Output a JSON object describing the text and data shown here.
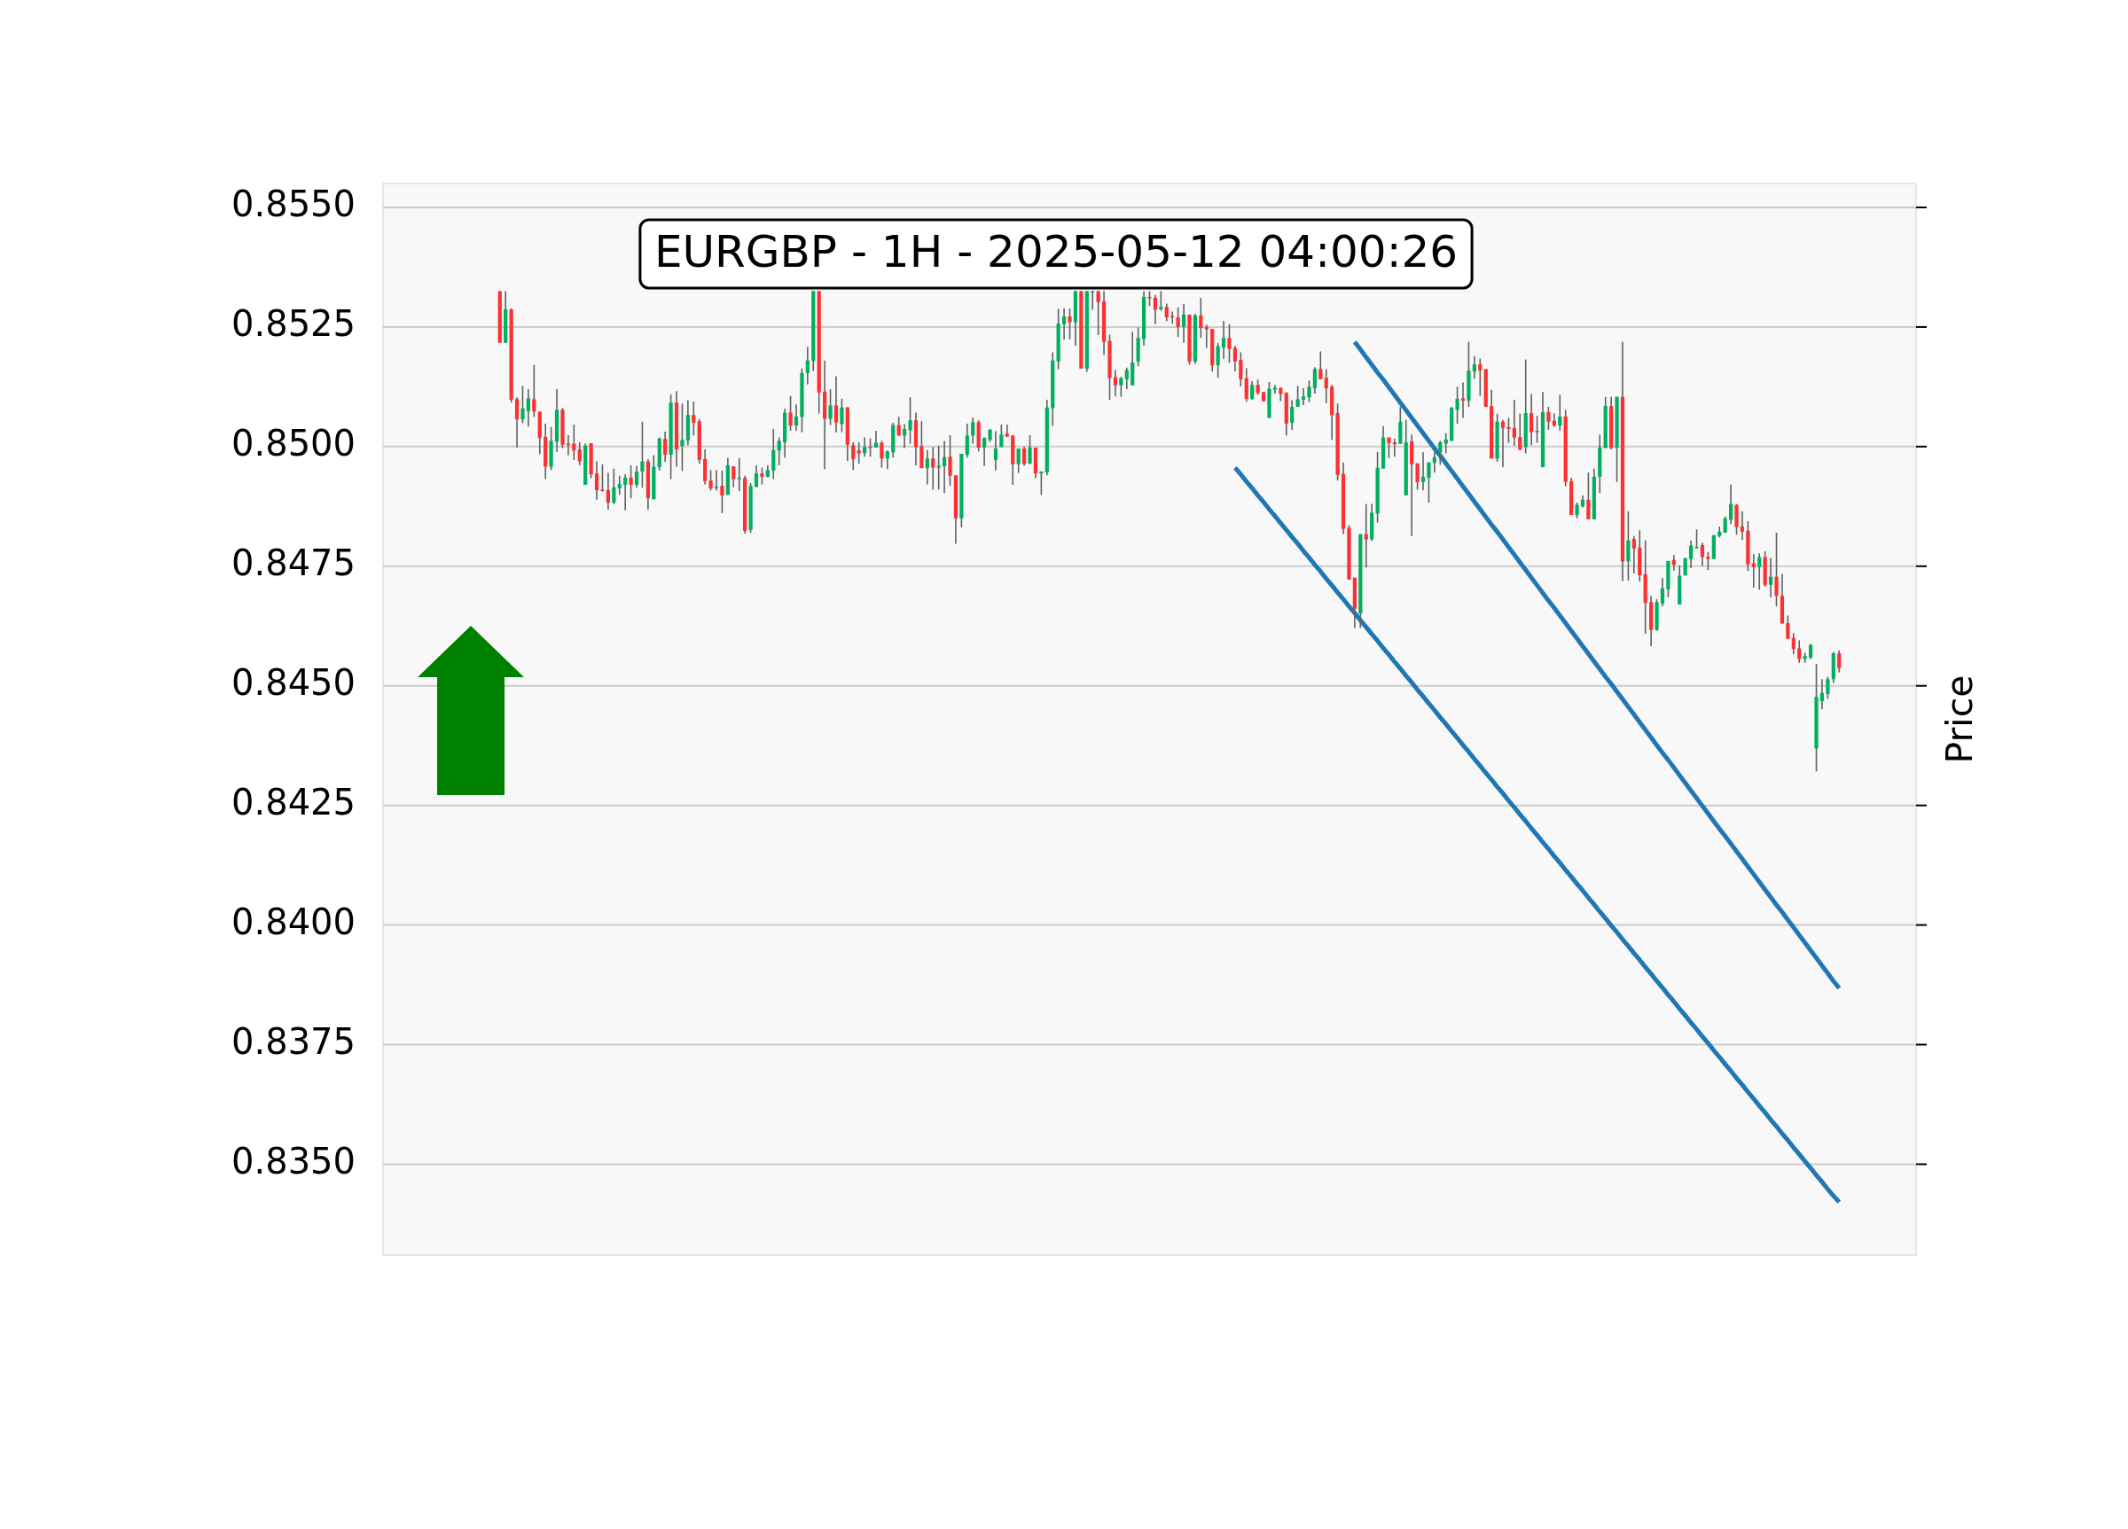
{
  "chart_data": {
    "type": "candlestick",
    "title": "EURGBP - 1H - 2025-05-12 04:00:26",
    "ylabel": "Price",
    "categories": [
      null,
      null,
      null,
      null,
      null,
      null,
      null,
      null,
      null,
      null,
      null,
      null,
      null,
      null,
      null,
      null,
      null,
      null,
      null,
      null,
      null,
      null,
      null,
      null,
      null,
      null,
      null,
      null,
      null,
      null,
      null,
      null,
      null,
      null,
      null,
      null,
      null,
      null,
      null,
      null,
      null,
      null,
      null,
      null,
      null,
      null,
      null,
      null,
      null,
      null,
      null,
      null,
      null,
      null,
      null,
      null,
      null,
      null,
      null,
      null,
      null,
      null,
      null,
      null,
      null,
      null,
      null,
      null,
      null,
      null,
      null,
      null,
      null,
      null,
      null,
      null,
      null,
      null,
      null,
      null,
      null,
      null,
      null,
      null,
      null,
      null,
      null,
      null,
      null,
      null,
      null,
      null,
      null,
      null,
      null,
      null,
      null,
      null,
      null,
      null,
      null,
      null,
      null,
      null,
      null,
      null,
      null,
      null,
      null,
      null,
      null,
      null,
      null,
      null,
      null,
      null,
      null,
      null,
      null,
      null,
      null,
      null,
      null,
      null,
      null,
      null,
      null,
      null,
      null,
      null,
      null,
      null,
      null,
      null,
      null,
      null,
      null,
      null,
      null,
      null,
      null,
      null,
      null,
      null,
      null,
      null,
      null,
      null,
      null,
      null,
      null,
      null,
      null,
      null,
      null,
      null,
      null,
      null,
      null,
      null,
      null,
      null,
      null,
      null,
      null,
      null,
      null,
      null,
      null,
      null,
      null,
      null,
      null,
      null,
      null,
      null,
      null,
      null,
      null,
      null,
      null,
      null,
      null,
      null,
      null,
      null,
      null,
      null,
      null,
      null,
      null,
      null,
      null,
      null,
      null,
      null,
      null,
      null,
      null,
      null,
      null,
      null,
      null,
      null,
      null,
      null,
      null,
      null,
      null,
      null,
      null,
      null,
      null,
      null,
      null,
      null,
      null,
      null,
      null,
      null,
      null,
      null,
      null,
      null,
      null,
      null,
      null,
      null,
      null,
      null,
      null,
      null,
      null,
      null,
      null,
      null,
      null,
      null,
      null,
      null,
      null,
      null,
      null,
      null,
      null,
      null,
      null,
      null,
      null,
      null,
      null,
      null,
      null,
      null,
      null,
      null,
      null,
      null,
      null,
      null,
      null,
      null,
      null,
      null,
      null,
      null,
      null,
      null,
      null
    ],
    "ohlc": [
      null,
      null,
      null,
      null,
      null,
      null,
      null,
      null,
      null,
      null,
      null,
      null,
      null,
      null,
      null,
      null,
      null,
      null,
      null,
      null,
      [
        0.85325,
        0.85325,
        0.85217,
        0.85217
      ],
      [
        0.85217,
        0.85325,
        0.85217,
        0.85287
      ],
      [
        0.85287,
        0.85289,
        0.85092,
        0.85098
      ],
      [
        0.85099,
        0.85103,
        0.84998,
        0.85057
      ],
      [
        0.85057,
        0.85127,
        0.85049,
        0.8508
      ],
      [
        0.85074,
        0.8512,
        0.85042,
        0.85101
      ],
      [
        0.85099,
        0.85171,
        0.85062,
        0.85073
      ],
      [
        0.85073,
        0.85073,
        0.84984,
        0.85018
      ],
      [
        0.8502,
        0.85048,
        0.84932,
        0.84958
      ],
      [
        0.84958,
        0.85041,
        0.84951,
        0.85012
      ],
      [
        0.8501,
        0.8512,
        0.84989,
        0.85077
      ],
      [
        0.85077,
        0.85081,
        0.84997,
        0.85004
      ],
      [
        0.85006,
        0.85024,
        0.84982,
        0.85004
      ],
      [
        0.85006,
        0.85046,
        0.84972,
        0.84992
      ],
      [
        0.84994,
        0.85009,
        0.84961,
        0.84969
      ],
      [
        0.8492,
        0.85006,
        0.8492,
        0.85002
      ],
      [
        0.85007,
        0.85007,
        0.84934,
        0.84942
      ],
      [
        0.84944,
        0.84969,
        0.84889,
        0.84909
      ],
      [
        0.8491,
        0.84963,
        0.84906,
        0.84907
      ],
      [
        0.84909,
        0.84945,
        0.84868,
        0.84883
      ],
      [
        0.84883,
        0.84954,
        0.8488,
        0.84915
      ],
      [
        0.84913,
        0.84939,
        0.84899,
        0.84922
      ],
      [
        0.8492,
        0.84942,
        0.84867,
        0.84935
      ],
      [
        0.84935,
        0.84961,
        0.84892,
        0.8492
      ],
      [
        0.8492,
        0.8496,
        0.84914,
        0.84948
      ],
      [
        0.84948,
        0.85052,
        0.84914,
        0.84969
      ],
      [
        0.84969,
        0.84974,
        0.84868,
        0.84892
      ],
      [
        0.8489,
        0.84982,
        0.8489,
        0.84958
      ],
      [
        0.84957,
        0.85019,
        0.8495,
        0.85017
      ],
      [
        0.85016,
        0.85031,
        0.84968,
        0.84983
      ],
      [
        0.84983,
        0.85109,
        0.84932,
        0.85092
      ],
      [
        0.85092,
        0.85116,
        0.84958,
        0.84994
      ],
      [
        0.85001,
        0.8509,
        0.84949,
        0.85014
      ],
      [
        0.85013,
        0.85097,
        0.85003,
        0.85066
      ],
      [
        0.85066,
        0.85094,
        0.85023,
        0.8505
      ],
      [
        0.85053,
        0.85058,
        0.84964,
        0.84972
      ],
      [
        0.84974,
        0.84994,
        0.84921,
        0.84928
      ],
      [
        0.84929,
        0.84951,
        0.84908,
        0.84913
      ],
      [
        0.84913,
        0.84951,
        0.84908,
        0.84916
      ],
      [
        0.84918,
        0.8495,
        0.84861,
        0.84898
      ],
      [
        0.84899,
        0.84976,
        0.84899,
        0.84961
      ],
      [
        0.84959,
        0.84959,
        0.84915,
        0.84932
      ],
      [
        0.84932,
        0.84976,
        0.84907,
        0.84935
      ],
      [
        0.84934,
        0.84939,
        0.84818,
        0.84824
      ],
      [
        0.84826,
        0.84924,
        0.8482,
        0.84918
      ],
      [
        0.84916,
        0.84961,
        0.84915,
        0.84944
      ],
      [
        0.84944,
        0.84956,
        0.84921,
        0.84937
      ],
      [
        0.84937,
        0.84961,
        0.84936,
        0.84951
      ],
      [
        0.8495,
        0.85037,
        0.84932,
        0.84993
      ],
      [
        0.84992,
        0.85019,
        0.84961,
        0.85012
      ],
      [
        0.85009,
        0.85079,
        0.84977,
        0.85071
      ],
      [
        0.85071,
        0.85106,
        0.85033,
        0.85044
      ],
      [
        0.85044,
        0.85088,
        0.85033,
        0.85063
      ],
      [
        0.85062,
        0.85163,
        0.8503,
        0.85154
      ],
      [
        0.85154,
        0.85208,
        0.8513,
        0.8518
      ],
      [
        0.85179,
        0.85325,
        0.85158,
        0.85325
      ],
      [
        0.85325,
        0.85325,
        0.85069,
        0.85113
      ],
      [
        0.85115,
        0.8518,
        0.84953,
        0.85058
      ],
      [
        0.85058,
        0.8512,
        0.85045,
        0.85086
      ],
      [
        0.85086,
        0.85147,
        0.8503,
        0.8505
      ],
      [
        0.85047,
        0.851,
        0.8503,
        0.85082
      ],
      [
        0.85082,
        0.85082,
        0.8497,
        0.85004
      ],
      [
        0.85003,
        0.85009,
        0.84951,
        0.84974
      ],
      [
        0.84992,
        0.85009,
        0.84964,
        0.84986
      ],
      [
        0.84986,
        0.85019,
        0.84979,
        0.84999
      ],
      [
        0.85,
        0.85017,
        0.84979,
        0.84998
      ],
      [
        0.84998,
        0.85033,
        0.84998,
        0.85008
      ],
      [
        0.85008,
        0.85012,
        0.84956,
        0.84975
      ],
      [
        0.84975,
        0.84992,
        0.84953,
        0.8499
      ],
      [
        0.84988,
        0.8505,
        0.84977,
        0.85045
      ],
      [
        0.85045,
        0.85062,
        0.85023,
        0.85023
      ],
      [
        0.85023,
        0.85047,
        0.84997,
        0.85037
      ],
      [
        0.85034,
        0.85103,
        0.85006,
        0.85055
      ],
      [
        0.85055,
        0.85071,
        0.84961,
        0.84999
      ],
      [
        0.85001,
        0.85053,
        0.84955,
        0.84955
      ],
      [
        0.84955,
        0.84993,
        0.84921,
        0.84975
      ],
      [
        0.84975,
        0.84999,
        0.8491,
        0.84956
      ],
      [
        0.84956,
        0.85002,
        0.8491,
        0.8496
      ],
      [
        0.84959,
        0.85012,
        0.84903,
        0.84978
      ],
      [
        0.84979,
        0.85024,
        0.84918,
        0.84939
      ],
      [
        0.8494,
        0.8494,
        0.84797,
        0.8485
      ],
      [
        0.8485,
        0.84985,
        0.84831,
        0.84985
      ],
      [
        0.84983,
        0.85048,
        0.84977,
        0.85023
      ],
      [
        0.85023,
        0.85061,
        0.85006,
        0.85051
      ],
      [
        0.85051,
        0.85055,
        0.8499,
        0.84998
      ],
      [
        0.84998,
        0.85019,
        0.8496,
        0.85018
      ],
      [
        0.85014,
        0.85037,
        0.8501,
        0.85035
      ],
      [
        0.84972,
        0.85032,
        0.8495,
        0.84996
      ],
      [
        0.84999,
        0.85046,
        0.84999,
        0.85025
      ],
      [
        0.85027,
        0.85046,
        0.8502,
        0.85021
      ],
      [
        0.85023,
        0.85024,
        0.8492,
        0.84963
      ],
      [
        0.84963,
        0.84996,
        0.84945,
        0.84996
      ],
      [
        0.84996,
        0.85,
        0.8496,
        0.84964
      ],
      [
        0.84964,
        0.85024,
        0.84964,
        0.84998
      ],
      [
        0.84998,
        0.84998,
        0.84934,
        0.84944
      ],
      [
        0.84944,
        0.84948,
        0.84899,
        0.84948
      ],
      [
        0.84946,
        0.85098,
        0.8494,
        0.85082
      ],
      [
        0.8508,
        0.85197,
        0.85043,
        0.8518
      ],
      [
        0.85178,
        0.85288,
        0.85162,
        0.85257
      ],
      [
        0.85256,
        0.85289,
        0.85224,
        0.85272
      ],
      [
        0.85272,
        0.85289,
        0.85224,
        0.8526
      ],
      [
        0.8526,
        0.85325,
        0.85211,
        0.85325
      ],
      [
        0.85325,
        0.85325,
        0.85163,
        0.85163
      ],
      [
        0.85163,
        0.85325,
        0.85156,
        0.85325
      ],
      [
        0.85325,
        0.85325,
        0.85286,
        0.85325
      ],
      [
        0.85325,
        0.85325,
        0.85233,
        0.85302
      ],
      [
        0.85303,
        0.85325,
        0.85191,
        0.85219
      ],
      [
        0.85221,
        0.85234,
        0.85098,
        0.85143
      ],
      [
        0.85145,
        0.8516,
        0.85105,
        0.85128
      ],
      [
        0.85128,
        0.85146,
        0.85104,
        0.85143
      ],
      [
        0.85141,
        0.85165,
        0.8512,
        0.8516
      ],
      [
        0.85128,
        0.8524,
        0.85128,
        0.85176
      ],
      [
        0.85178,
        0.85249,
        0.85168,
        0.85227
      ],
      [
        0.85225,
        0.85325,
        0.85211,
        0.85313
      ],
      [
        0.85313,
        0.85325,
        0.85294,
        0.8531
      ],
      [
        0.85311,
        0.85317,
        0.85256,
        0.85286
      ],
      [
        0.85287,
        0.85325,
        0.85284,
        0.85292
      ],
      [
        0.85292,
        0.85299,
        0.85262,
        0.8527
      ],
      [
        0.85273,
        0.85282,
        0.85257,
        0.8527
      ],
      [
        0.8527,
        0.85291,
        0.85229,
        0.8525
      ],
      [
        0.8525,
        0.85298,
        0.85217,
        0.85276
      ],
      [
        0.85276,
        0.85276,
        0.85171,
        0.85178
      ],
      [
        0.85178,
        0.85278,
        0.85173,
        0.85274
      ],
      [
        0.85274,
        0.85311,
        0.85227,
        0.85248
      ],
      [
        0.8525,
        0.85255,
        0.85206,
        0.85245
      ],
      [
        0.85246,
        0.85246,
        0.85157,
        0.8517
      ],
      [
        0.8517,
        0.85217,
        0.85144,
        0.8521
      ],
      [
        0.85207,
        0.85263,
        0.85183,
        0.85227
      ],
      [
        0.85227,
        0.85256,
        0.85175,
        0.85204
      ],
      [
        0.85206,
        0.85211,
        0.85157,
        0.85178
      ],
      [
        0.85181,
        0.85197,
        0.85126,
        0.85141
      ],
      [
        0.85143,
        0.85164,
        0.85094,
        0.851
      ],
      [
        0.851,
        0.85137,
        0.85098,
        0.85129
      ],
      [
        0.85129,
        0.8514,
        0.85108,
        0.85112
      ],
      [
        0.85114,
        0.85114,
        0.85094,
        0.85095
      ],
      [
        0.8506,
        0.85135,
        0.8506,
        0.85121
      ],
      [
        0.85119,
        0.85129,
        0.85111,
        0.85123
      ],
      [
        0.85123,
        0.85123,
        0.85095,
        0.8511
      ],
      [
        0.85113,
        0.85113,
        0.85023,
        0.85048
      ],
      [
        0.8505,
        0.85097,
        0.85035,
        0.85083
      ],
      [
        0.85083,
        0.85127,
        0.85083,
        0.85099
      ],
      [
        0.85098,
        0.85122,
        0.85087,
        0.85105
      ],
      [
        0.85103,
        0.85138,
        0.85093,
        0.85125
      ],
      [
        0.85122,
        0.85166,
        0.85111,
        0.85162
      ],
      [
        0.85162,
        0.85199,
        0.85141,
        0.85141
      ],
      [
        0.85144,
        0.85162,
        0.85091,
        0.85122
      ],
      [
        0.85125,
        0.85129,
        0.85014,
        0.85066
      ],
      [
        0.8507,
        0.8509,
        0.84929,
        0.84941
      ],
      [
        0.84943,
        0.84967,
        0.84817,
        0.84828
      ],
      [
        0.8483,
        0.84836,
        0.84722,
        0.84722
      ],
      [
        0.84726,
        0.84726,
        0.84621,
        0.84661
      ],
      [
        0.84651,
        0.84817,
        0.84621,
        0.84817
      ],
      [
        0.84817,
        0.8488,
        0.84747,
        0.84806
      ],
      [
        0.84806,
        0.8488,
        0.84803,
        0.84862
      ],
      [
        0.8486,
        0.84989,
        0.84841,
        0.84956
      ],
      [
        0.84954,
        0.85043,
        0.84954,
        0.85019
      ],
      [
        0.85019,
        0.85019,
        0.84976,
        0.85007
      ],
      [
        0.85009,
        0.85017,
        0.84979,
        0.85005
      ],
      [
        0.85006,
        0.85083,
        0.85006,
        0.85052
      ],
      [
        0.84898,
        0.85056,
        0.84898,
        0.85009
      ],
      [
        0.85011,
        0.85025,
        0.84813,
        0.84963
      ],
      [
        0.84965,
        0.84965,
        0.8491,
        0.84926
      ],
      [
        0.84926,
        0.84988,
        0.84909,
        0.84937
      ],
      [
        0.84935,
        0.84967,
        0.84883,
        0.84967
      ],
      [
        0.84966,
        0.84988,
        0.84946,
        0.84978
      ],
      [
        0.84988,
        0.85012,
        0.84962,
        0.85009
      ],
      [
        0.85006,
        0.85028,
        0.84986,
        0.85015
      ],
      [
        0.85012,
        0.85083,
        0.85012,
        0.85081
      ],
      [
        0.85077,
        0.85125,
        0.85048,
        0.851
      ],
      [
        0.85101,
        0.85134,
        0.8506,
        0.85096
      ],
      [
        0.85096,
        0.85219,
        0.85083,
        0.85159
      ],
      [
        0.85157,
        0.85189,
        0.85142,
        0.85172
      ],
      [
        0.85172,
        0.85184,
        0.85106,
        0.85159
      ],
      [
        0.85162,
        0.85162,
        0.85083,
        0.85083
      ],
      [
        0.85085,
        0.85119,
        0.84975,
        0.84975
      ],
      [
        0.84975,
        0.85069,
        0.84968,
        0.85052
      ],
      [
        0.85052,
        0.85056,
        0.84957,
        0.85039
      ],
      [
        0.85041,
        0.8506,
        0.85008,
        0.85037
      ],
      [
        0.85039,
        0.85098,
        0.85002,
        0.85019
      ],
      [
        0.8502,
        0.85069,
        0.84992,
        0.84994
      ],
      [
        0.84999,
        0.85182,
        0.84986,
        0.8507
      ],
      [
        0.8507,
        0.8511,
        0.85003,
        0.8503
      ],
      [
        0.8503,
        0.85064,
        0.85008,
        0.85033
      ],
      [
        0.84957,
        0.85114,
        0.84957,
        0.85072
      ],
      [
        0.85072,
        0.85083,
        0.85035,
        0.85052
      ],
      [
        0.85054,
        0.85069,
        0.85041,
        0.85044
      ],
      [
        0.85044,
        0.85108,
        0.85033,
        0.85063
      ],
      [
        0.85063,
        0.85077,
        0.84917,
        0.84926
      ],
      [
        0.84928,
        0.84935,
        0.84857,
        0.84857
      ],
      [
        0.84857,
        0.84883,
        0.8485,
        0.84878
      ],
      [
        0.84875,
        0.84898,
        0.84873,
        0.84889
      ],
      [
        0.84889,
        0.84946,
        0.84848,
        0.84848
      ],
      [
        0.84848,
        0.84954,
        0.84848,
        0.84937
      ],
      [
        0.84937,
        0.85025,
        0.84903,
        0.84998
      ],
      [
        0.84997,
        0.85104,
        0.84997,
        0.85085
      ],
      [
        0.85085,
        0.85104,
        0.84994,
        0.84997
      ],
      [
        0.84997,
        0.85104,
        0.84926,
        0.85104
      ],
      [
        0.85104,
        0.85219,
        0.84719,
        0.8476
      ],
      [
        0.8476,
        0.84865,
        0.8472,
        0.84804
      ],
      [
        0.84807,
        0.84813,
        0.84735,
        0.84787
      ],
      [
        0.84789,
        0.84825,
        0.84718,
        0.84731
      ],
      [
        0.84733,
        0.84804,
        0.84609,
        0.84673
      ],
      [
        0.84675,
        0.84688,
        0.84583,
        0.84617
      ],
      [
        0.84617,
        0.84681,
        0.84615,
        0.84675
      ],
      [
        0.84672,
        0.84725,
        0.84666,
        0.84704
      ],
      [
        0.84702,
        0.84761,
        0.84685,
        0.84761
      ],
      [
        0.84763,
        0.84773,
        0.84741,
        0.84753
      ],
      [
        0.8467,
        0.84751,
        0.8467,
        0.8473
      ],
      [
        0.84731,
        0.84767,
        0.8473,
        0.84767
      ],
      [
        0.84765,
        0.84804,
        0.84746,
        0.84793
      ],
      [
        0.84789,
        0.84827,
        0.84787,
        0.8479
      ],
      [
        0.84794,
        0.84799,
        0.84751,
        0.84769
      ],
      [
        0.8477,
        0.8478,
        0.84742,
        0.84765
      ],
      [
        0.84765,
        0.84815,
        0.84765,
        0.84815
      ],
      [
        0.84813,
        0.84833,
        0.8481,
        0.84822
      ],
      [
        0.8482,
        0.84854,
        0.8482,
        0.8485
      ],
      [
        0.84847,
        0.84921,
        0.84838,
        0.8488
      ],
      [
        0.84878,
        0.8488,
        0.84816,
        0.84832
      ],
      [
        0.84833,
        0.84865,
        0.84805,
        0.84822
      ],
      [
        0.84824,
        0.84844,
        0.8474,
        0.84754
      ],
      [
        0.84756,
        0.84775,
        0.84705,
        0.84748
      ],
      [
        0.84748,
        0.84777,
        0.84701,
        0.84769
      ],
      [
        0.84769,
        0.84781,
        0.84707,
        0.84711
      ],
      [
        0.84711,
        0.84767,
        0.84685,
        0.84728
      ],
      [
        0.84728,
        0.8482,
        0.84666,
        0.84688
      ],
      [
        0.84688,
        0.84734,
        0.8463,
        0.8463
      ],
      [
        0.84631,
        0.84647,
        0.84598,
        0.84598
      ],
      [
        0.846,
        0.8461,
        0.84566,
        0.84577
      ],
      [
        0.84578,
        0.84595,
        0.84548,
        0.84556
      ],
      [
        0.84556,
        0.84569,
        0.84548,
        0.84562
      ],
      [
        0.84559,
        0.84588,
        0.84556,
        0.84585
      ],
      [
        0.84369,
        0.84546,
        0.84321,
        0.84477
      ],
      [
        0.84468,
        0.84514,
        0.84451,
        0.84485
      ],
      [
        0.84483,
        0.84519,
        0.84473,
        0.84514
      ],
      [
        0.84514,
        0.84571,
        0.84506,
        0.84568
      ],
      [
        0.84568,
        0.84574,
        0.84528,
        0.84537
      ],
      null,
      null,
      null,
      null,
      null,
      null,
      null,
      null,
      null,
      null,
      null,
      null,
      null
    ],
    "colors": [
      null,
      null,
      null,
      null,
      null,
      null,
      null,
      null,
      null,
      null,
      null,
      null,
      null,
      null,
      null,
      null,
      null,
      null,
      null,
      null,
      "#fe3032",
      "#00b060",
      "#fe3032",
      "#fe3032",
      "#00b060",
      "#00b060",
      "#fe3032",
      "#fe3032",
      "#fe3032",
      "#00b060",
      "#00b060",
      "#fe3032",
      "#fe3032",
      "#fe3032",
      "#fe3032",
      "#00b060",
      "#fe3032",
      "#fe3032",
      "#fe3032",
      "#fe3032",
      "#00b060",
      "#00b060",
      "#00b060",
      "#fe3032",
      "#00b060",
      "#00b060",
      "#fe3032",
      "#00b060",
      "#00b060",
      "#fe3032",
      "#00b060",
      "#fe3032",
      "#00b060",
      "#00b060",
      "#fe3032",
      "#fe3032",
      "#fe3032",
      "#fe3032",
      "#00b060",
      "#fe3032",
      "#00b060",
      "#fe3032",
      "#00b060",
      "#fe3032",
      "#00b060",
      "#00b060",
      "#fe3032",
      "#00b060",
      "#00b060",
      "#00b060",
      "#00b060",
      "#fe3032",
      "#00b060",
      "#00b060",
      "#00b060",
      "#00b060",
      "#fe3032",
      "#fe3032",
      "#00b060",
      "#fe3032",
      "#00b060",
      "#fe3032",
      "#fe3032",
      "#fe3032",
      "#00b060",
      "#fe3032",
      "#00b060",
      "#fe3032",
      "#00b060",
      "#00b060",
      "#fe3032",
      "#00b060",
      "#00b060",
      "#fe3032",
      "#fe3032",
      "#00b060",
      "#fe3032",
      "#00b060",
      "#00b060",
      "#fe3032",
      "#fe3032",
      "#00b060",
      "#00b060",
      "#00b060",
      "#fe3032",
      "#00b060",
      "#00b060",
      "#00b060",
      "#00b060",
      "#fe3032",
      "#fe3032",
      "#00b060",
      "#fe3032",
      "#00b060",
      "#fe3032",
      "#00b060",
      "#00b060",
      "#00b060",
      "#00b060",
      "#00b060",
      "#fe3032",
      "#00b060",
      "#fe3032",
      "#00b060",
      "#00b060",
      "#fe3032",
      "#fe3032",
      "#fe3032",
      "#fe3032",
      "#00b060",
      "#00b060",
      "#00b060",
      "#00b060",
      "#00b060",
      "#fe3032",
      "#fe3032",
      "#00b060",
      "#fe3032",
      "#fe3032",
      "#fe3032",
      "#00b060",
      "#fe3032",
      "#00b060",
      "#fe3032",
      "#fe3032",
      "#fe3032",
      "#00b060",
      "#00b060",
      "#fe3032",
      "#fe3032",
      "#fe3032",
      "#fe3032",
      "#00b060",
      "#fe3032",
      "#fe3032",
      "#00b060",
      "#00b060",
      "#fe3032",
      "#fe3032",
      "#00b060",
      "#00b060",
      "#00b060",
      "#00b060",
      "#00b060",
      "#fe3032",
      "#fe3032",
      "#fe3032",
      "#fe3032",
      "#fe3032",
      "#fe3032",
      "#fe3032",
      "#00b060",
      "#fe3032",
      "#00b060",
      "#00b060",
      "#00b060",
      "#fe3032",
      "#fe3032",
      "#00b060",
      "#00b060",
      "#fe3032",
      "#fe3032",
      "#00b060",
      "#00b060",
      "#00b060",
      "#00b060",
      "#00b060",
      "#00b060",
      "#00b060",
      "#fe3032",
      "#00b060",
      "#00b060",
      "#fe3032",
      "#fe3032",
      "#fe3032",
      "#00b060",
      "#fe3032",
      "#fe3032",
      "#fe3032",
      "#fe3032",
      "#00b060",
      "#fe3032",
      "#00b060",
      "#00b060",
      "#fe3032",
      "#fe3032",
      "#00b060",
      "#fe3032",
      "#fe3032",
      "#00b060",
      "#00b060",
      "#fe3032",
      "#00b060",
      "#00b060",
      "#00b060",
      "#fe3032",
      "#00b060",
      "#fe3032",
      "#00b060",
      "#fe3032",
      "#fe3032",
      "#fe3032",
      "#fe3032",
      "#00b060",
      "#00b060",
      "#00b060",
      "#fe3032",
      "#00b060",
      "#00b060",
      "#00b060",
      "#00b060",
      "#fe3032",
      "#fe3032",
      "#00b060",
      "#00b060",
      "#00b060",
      "#00b060",
      "#fe3032",
      "#fe3032",
      "#fe3032",
      "#fe3032",
      "#00b060",
      "#fe3032",
      "#00b060",
      "#fe3032",
      "#fe3032",
      "#fe3032",
      "#fe3032",
      "#fe3032",
      "#00b060",
      "#00b060",
      "#00b060",
      "#00b060",
      "#00b060",
      "#00b060",
      "#fe3032",
      null,
      null,
      null,
      null,
      null,
      null,
      null,
      null,
      null,
      null,
      null,
      null,
      null
    ],
    "series": [
      {
        "type": "line",
        "color": "#1f77b4",
        "values": [
          null,
          null,
          null,
          null,
          null,
          null,
          null,
          null,
          null,
          null,
          null,
          null,
          null,
          null,
          null,
          null,
          null,
          null,
          null,
          null,
          null,
          null,
          null,
          null,
          null,
          null,
          null,
          null,
          null,
          null,
          null,
          null,
          null,
          null,
          null,
          null,
          null,
          null,
          null,
          null,
          null,
          null,
          null,
          null,
          null,
          null,
          null,
          null,
          null,
          null,
          null,
          null,
          null,
          null,
          null,
          null,
          null,
          null,
          null,
          null,
          null,
          null,
          null,
          null,
          null,
          null,
          null,
          null,
          null,
          null,
          null,
          null,
          null,
          null,
          null,
          null,
          null,
          null,
          null,
          null,
          null,
          null,
          null,
          null,
          null,
          null,
          null,
          null,
          null,
          null,
          null,
          null,
          null,
          null,
          null,
          null,
          null,
          null,
          null,
          null,
          null,
          null,
          null,
          null,
          null,
          null,
          null,
          null,
          null,
          null,
          null,
          null,
          null,
          null,
          null,
          null,
          null,
          null,
          null,
          null,
          null,
          null,
          null,
          null,
          null,
          null,
          null,
          null,
          null,
          null,
          null,
          null,
          null,
          null,
          null,
          null,
          null,
          null,
          null,
          null,
          null,
          null,
          null,
          null,
          null,
          null,
          null,
          null,
          null,
          null,
          null,
          null,
          null,
          null,
          null,
          null,
          null,
          null,
          null,
          null,
          null,
          null,
          null,
          null,
          null,
          null,
          null,
          null,
          null,
          null,
          0.85219,
          0.85203,
          0.85187,
          0.85171,
          0.85155,
          0.8514,
          0.85124,
          0.85108,
          0.85092,
          0.85076,
          0.8506,
          0.85044,
          0.85028,
          0.85012,
          0.84996,
          0.84981,
          0.84965,
          0.84949,
          0.84933,
          0.84917,
          0.84901,
          0.84885,
          0.84869,
          0.84853,
          0.84837,
          0.84822,
          0.84806,
          0.8479,
          0.84774,
          0.84758,
          0.84742,
          0.84726,
          0.8471,
          0.84694,
          0.84678,
          0.84663,
          0.84647,
          0.84631,
          0.84615,
          0.84599,
          0.84583,
          0.84567,
          0.84551,
          0.84535,
          0.84519,
          0.84504,
          0.84488,
          0.84472,
          0.84456,
          0.8444,
          0.84424,
          0.84408,
          0.84392,
          0.84376,
          0.8436,
          0.84345,
          0.84329,
          0.84313,
          0.84297,
          0.84281,
          0.84265,
          0.84249,
          0.84233,
          0.84217,
          0.84201,
          0.84186,
          0.8417,
          0.84154,
          0.84138,
          0.84122,
          0.84106,
          0.8409,
          0.84074,
          0.84058,
          0.84042,
          0.84027,
          0.84011,
          0.83995,
          0.83979,
          0.83963,
          0.83947,
          0.83931,
          0.83915,
          0.83899,
          0.83883,
          0.83868,
          null,
          null,
          null,
          null,
          null,
          null,
          null,
          null,
          null,
          null,
          null,
          null,
          null
        ]
      },
      {
        "type": "line",
        "color": "#1f77b4",
        "values": [
          null,
          null,
          null,
          null,
          null,
          null,
          null,
          null,
          null,
          null,
          null,
          null,
          null,
          null,
          null,
          null,
          null,
          null,
          null,
          null,
          null,
          null,
          null,
          null,
          null,
          null,
          null,
          null,
          null,
          null,
          null,
          null,
          null,
          null,
          null,
          null,
          null,
          null,
          null,
          null,
          null,
          null,
          null,
          null,
          null,
          null,
          null,
          null,
          null,
          null,
          null,
          null,
          null,
          null,
          null,
          null,
          null,
          null,
          null,
          null,
          null,
          null,
          null,
          null,
          null,
          null,
          null,
          null,
          null,
          null,
          null,
          null,
          null,
          null,
          null,
          null,
          null,
          null,
          null,
          null,
          null,
          null,
          null,
          null,
          null,
          null,
          null,
          null,
          null,
          null,
          null,
          null,
          null,
          null,
          null,
          null,
          null,
          null,
          null,
          null,
          null,
          null,
          null,
          null,
          null,
          null,
          null,
          null,
          null,
          null,
          null,
          null,
          null,
          null,
          null,
          null,
          null,
          null,
          null,
          null,
          null,
          null,
          null,
          null,
          null,
          null,
          null,
          null,
          null,
          null,
          null,
          null,
          null,
          null,
          null,
          null,
          null,
          null,
          null,
          null,
          null,
          null,
          null,
          null,
          null,
          null,
          null,
          null,
          null,
          0.84956,
          0.84942,
          0.84927,
          0.84913,
          0.84898,
          0.84884,
          0.84869,
          0.84855,
          0.8484,
          0.84826,
          0.84811,
          0.84797,
          0.84782,
          0.84768,
          0.84753,
          0.84739,
          0.84724,
          0.8471,
          0.84695,
          0.84681,
          0.84666,
          0.84652,
          0.84637,
          0.84623,
          0.84608,
          0.84594,
          0.84579,
          0.84565,
          0.8455,
          0.84536,
          0.84521,
          0.84507,
          0.84492,
          0.84478,
          0.84463,
          0.84449,
          0.84434,
          0.8442,
          0.84405,
          0.84391,
          0.84376,
          0.84362,
          0.84347,
          0.84333,
          0.84318,
          0.84304,
          0.84289,
          0.84275,
          0.8426,
          0.84246,
          0.84231,
          0.84217,
          0.84202,
          0.84188,
          0.84173,
          0.84159,
          0.84144,
          0.8413,
          0.84115,
          0.84101,
          0.84086,
          0.84072,
          0.84057,
          0.84043,
          0.84028,
          0.84014,
          0.83999,
          0.83985,
          0.8397,
          0.83956,
          0.83941,
          0.83927,
          0.83912,
          0.83898,
          0.83883,
          0.83869,
          0.83854,
          0.8384,
          0.83825,
          0.83811,
          0.83796,
          0.83782,
          0.83767,
          0.83753,
          0.83738,
          0.83724,
          0.83709,
          0.83695,
          0.8368,
          0.83666,
          0.83651,
          0.83637,
          0.83622,
          0.83608,
          0.83593,
          0.83579,
          0.83564,
          0.8355,
          0.83535,
          0.83521,
          0.83506,
          0.83492,
          0.83477,
          0.83463,
          0.83448,
          0.83434,
          0.83421,
          null,
          null,
          null,
          null,
          null,
          null,
          null,
          null,
          null,
          null,
          null,
          null,
          null
        ]
      }
    ],
    "ylim": [
      0.8331,
      0.8555
    ],
    "yticks": [
      {
        "value": 0.835,
        "label": "0.8350"
      },
      0.8375,
      {
        "value": 0.84,
        "label": "0.8400"
      },
      0.8425,
      {
        "value": 0.845,
        "label": "0.8450"
      },
      0.8475,
      {
        "value": 0.85,
        "label": "0.8500"
      },
      0.8525,
      {
        "value": 0.855,
        "label": "0.8550"
      }
    ],
    "grid": "y",
    "tick_labels": "y"
  }
}
